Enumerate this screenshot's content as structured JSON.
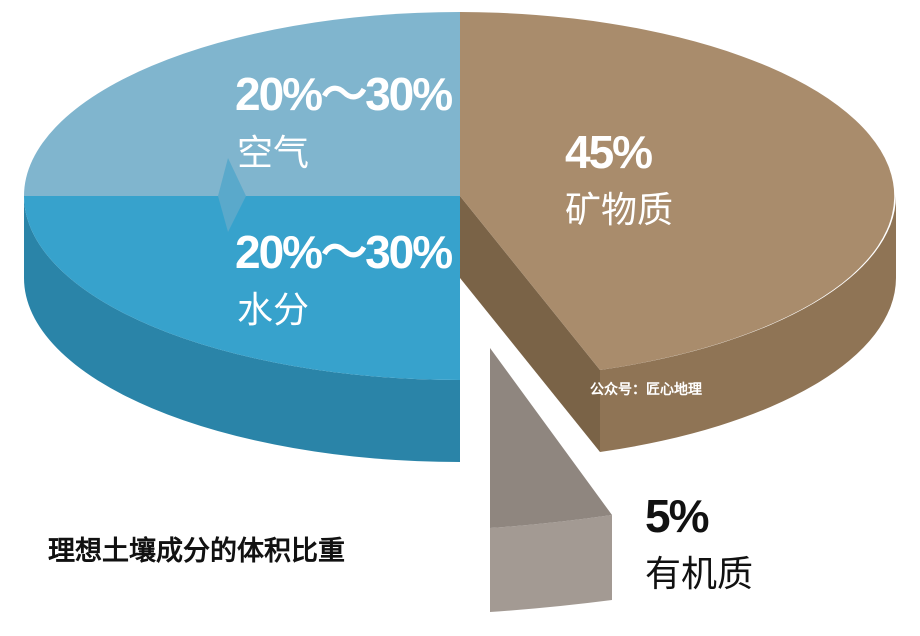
{
  "title": "理想土壤成分的体积比重",
  "segments": [
    {
      "label": "20%～30%",
      "name": "空气"
    },
    {
      "label": "20%～30%",
      "name": "水分"
    },
    {
      "label": "45%",
      "name": "矿物质"
    },
    {
      "label": "5%",
      "name": "有机质"
    }
  ],
  "watermark": "公众号：匠心地理"
}
